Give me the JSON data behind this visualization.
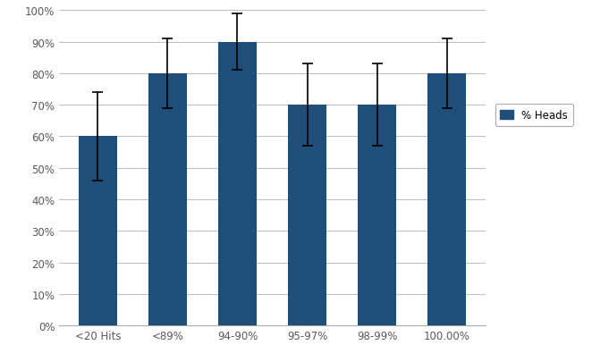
{
  "categories": [
    "<20 Hits",
    "<89%",
    "94-90%",
    "95-97%",
    "98-99%",
    "100.00%"
  ],
  "values": [
    60,
    80,
    90,
    70,
    70,
    80
  ],
  "errors_upper": [
    14,
    11,
    9,
    13,
    13,
    11
  ],
  "errors_lower": [
    14,
    11,
    9,
    13,
    13,
    11
  ],
  "bar_color": "#1F4E79",
  "legend_label": "% Heads",
  "legend_color": "#1F4E79",
  "ylim": [
    0,
    100
  ],
  "yticks": [
    0,
    10,
    20,
    30,
    40,
    50,
    60,
    70,
    80,
    90,
    100
  ],
  "ytick_labels": [
    "0%",
    "10%",
    "20%",
    "30%",
    "40%",
    "50%",
    "60%",
    "70%",
    "80%",
    "90%",
    "100%"
  ],
  "background_color": "#FFFFFF",
  "plot_bg_color": "#FFFFFF",
  "grid_color": "#C0C0C0",
  "error_cap_size": 4,
  "bar_width": 0.55,
  "tick_label_color": "#595959",
  "tick_fontsize": 8.5
}
